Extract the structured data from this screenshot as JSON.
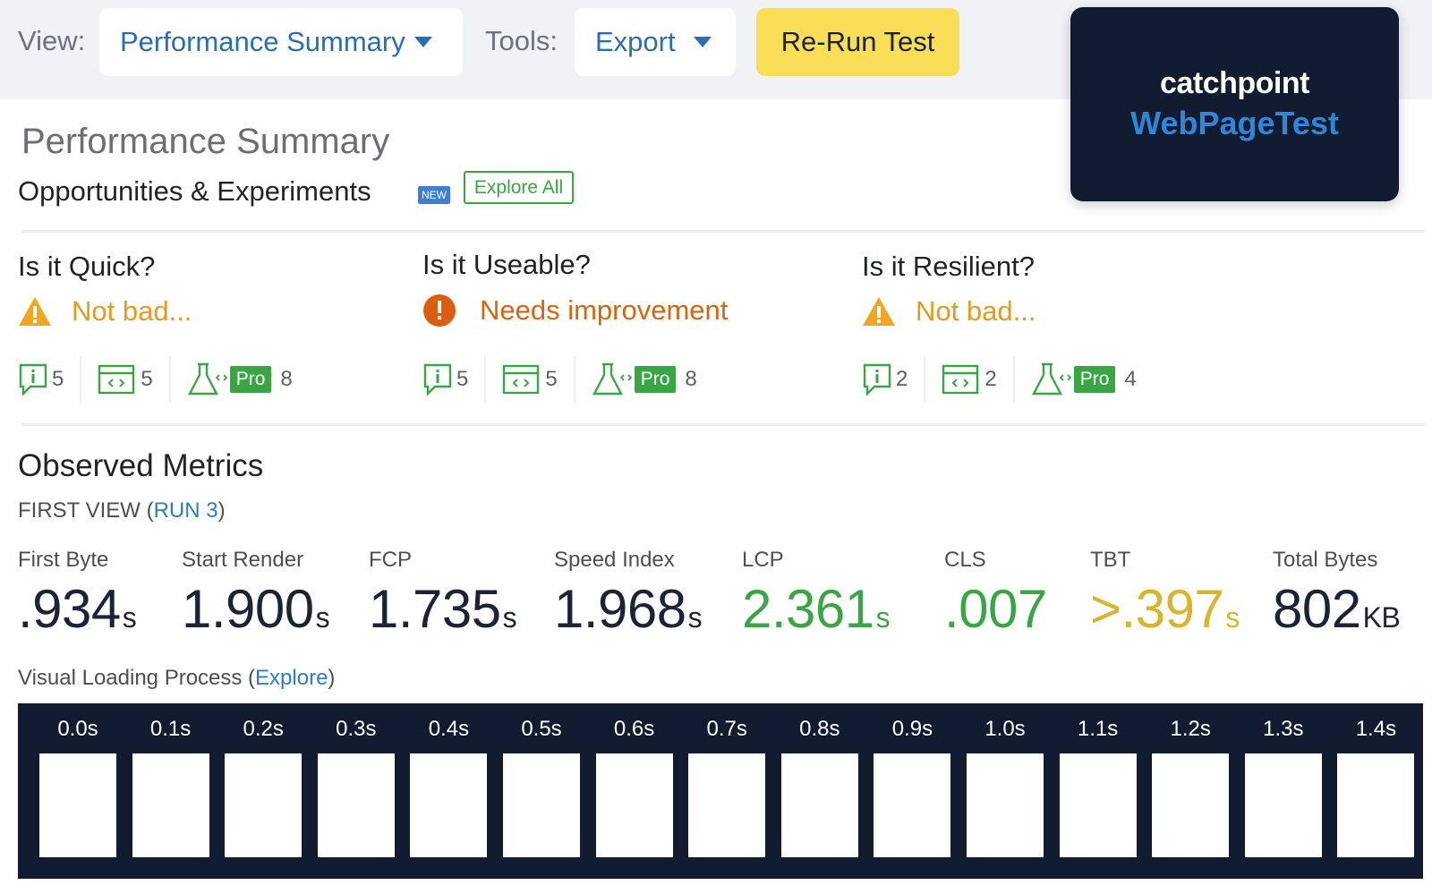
{
  "toolbar": {
    "view_label": "View:",
    "view_value": "Performance Summary",
    "tools_label": "Tools:",
    "tools_value": "Export",
    "rerun_label": "Re-Run Test"
  },
  "brand": {
    "line1": "catchpoint",
    "line2": "WebPageTest"
  },
  "page_title": "Performance Summary",
  "opportunities": {
    "title": "Opportunities & Experiments",
    "badge": "NEW",
    "explore_all": "Explore All"
  },
  "sections": [
    {
      "question": "Is it Quick?",
      "status": "Not bad...",
      "status_color": "#e59a1f",
      "icon": "warning-icon",
      "counts": {
        "tips": "5",
        "browser": "5",
        "pro": "8"
      }
    },
    {
      "question": "Is it Useable?",
      "status": "Needs improvement",
      "status_color": "#d9640f",
      "icon": "alert-circle-icon",
      "counts": {
        "tips": "5",
        "browser": "5",
        "pro": "8"
      }
    },
    {
      "question": "Is it Resilient?",
      "status": "Not bad...",
      "status_color": "#e59a1f",
      "icon": "warning-icon",
      "counts": {
        "tips": "2",
        "browser": "2",
        "pro": "4"
      }
    }
  ],
  "pro_label": "Pro",
  "observed": {
    "title": "Observed Metrics",
    "first_view_prefix": "FIRST VIEW (",
    "run_link": "RUN 3",
    "first_view_suffix": ")"
  },
  "metrics": [
    {
      "label": "First Byte",
      "value": ".934",
      "unit": "s",
      "color": "#1b2436"
    },
    {
      "label": "Start Render",
      "value": "1.900",
      "unit": "s",
      "color": "#1b2436"
    },
    {
      "label": "FCP",
      "value": "1.735",
      "unit": "s",
      "color": "#1b2436"
    },
    {
      "label": "Speed Index",
      "value": "1.968",
      "unit": "s",
      "color": "#1b2436"
    },
    {
      "label": "LCP",
      "value": "2.361",
      "unit": "s",
      "color": "#3aa544"
    },
    {
      "label": "CLS",
      "value": ".007",
      "unit": "",
      "color": "#3aa544"
    },
    {
      "label": "TBT",
      "value": ">.397",
      "unit": "s",
      "color": "#d8b52a"
    },
    {
      "label": "Total Bytes",
      "value": "802",
      "unit": "KB",
      "color": "#1b2436"
    }
  ],
  "visual_loading": {
    "prefix": "Visual Loading Process (",
    "link": "Explore",
    "suffix": ")"
  },
  "filmstrip": [
    "0.0s",
    "0.1s",
    "0.2s",
    "0.3s",
    "0.4s",
    "0.5s",
    "0.6s",
    "0.7s",
    "0.8s",
    "0.9s",
    "1.0s",
    "1.1s",
    "1.2s",
    "1.3s",
    "1.4s"
  ],
  "colors": {
    "accent_blue": "#2a6db3",
    "pro_green": "#3aa544",
    "rerun_yellow": "#fbde57",
    "dark_navy": "#121c30"
  }
}
